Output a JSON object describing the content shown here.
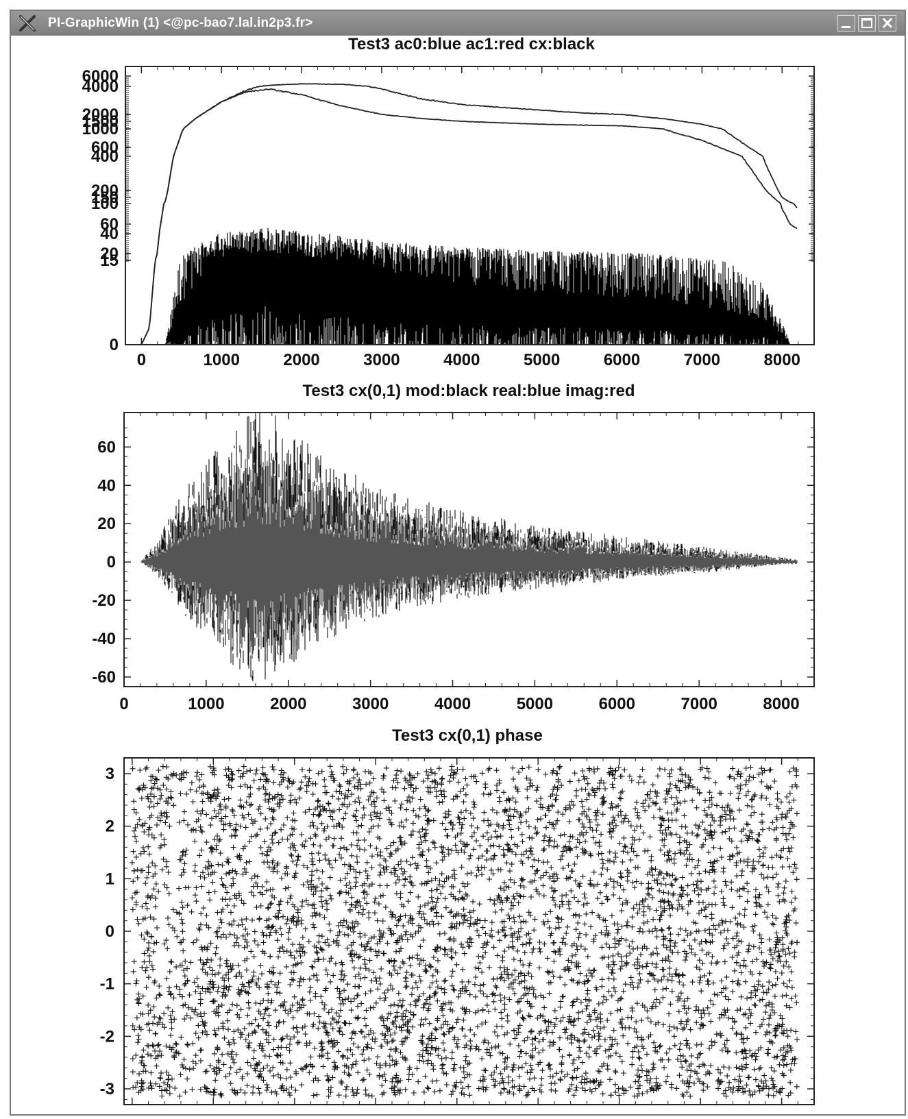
{
  "window": {
    "title": "PI-GraphicWin (1) <@pc-bao7.lal.in2p3.fr>",
    "icons": {
      "app": "x-logo-icon",
      "minimize": "minimize-icon",
      "maximize": "maximize-icon",
      "close": "close-icon"
    }
  },
  "chart_data": [
    {
      "type": "line",
      "title": "Test3 ac0:blue ac1:red cx:black",
      "xlim": [
        -200,
        8400
      ],
      "x_ticks": [
        "0",
        "1000",
        "2000",
        "3000",
        "4000",
        "5000",
        "6000",
        "7000",
        "8000"
      ],
      "y_ticks": [
        "6000",
        "4000",
        "2000",
        "1500",
        "1000",
        "600",
        "400",
        "200",
        "150",
        "100",
        "60",
        "40",
        "20",
        "15",
        "0"
      ],
      "series": [
        {
          "color": "#222222",
          "x": [
            0,
            100,
            200,
            300,
            400,
            500,
            700,
            1000,
            1300,
            1600,
            2000,
            2500,
            3000,
            3500,
            4000,
            4500,
            5000,
            5500,
            6000,
            6500,
            7000,
            7500,
            7800,
            8000,
            8100,
            8192
          ],
          "y": [
            0,
            3,
            20,
            120,
            400,
            900,
            1800,
            2900,
            3700,
            4200,
            4500,
            4400,
            3800,
            3100,
            2700,
            2500,
            2300,
            2100,
            2000,
            1700,
            1300,
            700,
            350,
            150,
            110,
            90
          ]
        },
        {
          "color": "#222222",
          "x": [
            0,
            100,
            200,
            300,
            400,
            500,
            700,
            1000,
            1300,
            1600,
            2000,
            2500,
            3000,
            3500,
            4000,
            4500,
            5000,
            5500,
            6000,
            6500,
            7000,
            7500,
            7800,
            8000,
            8100,
            8192
          ],
          "y": [
            0,
            3,
            20,
            120,
            400,
            900,
            1800,
            2900,
            3600,
            3800,
            3400,
            2600,
            2000,
            1700,
            1500,
            1400,
            1300,
            1250,
            1200,
            1000,
            750,
            400,
            200,
            90,
            60,
            50
          ]
        },
        {
          "color": "#000000",
          "fill": true,
          "x": [
            300,
            500,
            800,
            1000,
            1300,
            1600,
            2000,
            2500,
            3000,
            3500,
            4000,
            4500,
            5000,
            5500,
            6000,
            6500,
            7000,
            7500,
            7800,
            8000,
            8100
          ],
          "y": [
            0,
            12,
            22,
            28,
            32,
            35,
            30,
            25,
            22,
            20,
            18,
            17,
            15,
            15,
            14,
            13,
            11,
            9,
            7,
            3,
            0
          ]
        }
      ]
    },
    {
      "type": "line",
      "title": "Test3 cx(0,1) mod:black real:blue imag:red",
      "xlim": [
        0,
        8400
      ],
      "ylim": [
        -65,
        78
      ],
      "x_ticks": [
        "0",
        "1000",
        "2000",
        "3000",
        "4000",
        "5000",
        "6000",
        "7000",
        "8000"
      ],
      "y_ticks": [
        "60",
        "40",
        "20",
        "0",
        "-20",
        "-40",
        "-60"
      ],
      "series": [
        {
          "color": "#111111",
          "x": [
            200,
            400,
            600,
            800,
            1000,
            1200,
            1400,
            1600,
            1800,
            2000,
            2200,
            2500,
            3000,
            3500,
            4000,
            4500,
            5000,
            5500,
            6000,
            6500,
            7000,
            7500,
            8000,
            8192
          ],
          "y": [
            0,
            8,
            20,
            30,
            38,
            45,
            52,
            58,
            56,
            50,
            45,
            38,
            30,
            24,
            20,
            17,
            14,
            12,
            10,
            8,
            6,
            4,
            2,
            1
          ]
        },
        {
          "color": "#555555",
          "x": [
            200,
            400,
            600,
            800,
            1000,
            1200,
            1400,
            1600,
            1800,
            2000,
            2200,
            2500,
            3000,
            3500,
            4000,
            4500,
            5000,
            5500,
            6000,
            6500,
            7000,
            7500,
            8000,
            8192
          ],
          "y": [
            0,
            -6,
            -16,
            -26,
            -34,
            -40,
            -48,
            -55,
            -52,
            -46,
            -40,
            -34,
            -26,
            -20,
            -17,
            -14,
            -12,
            -10,
            -8,
            -6,
            -5,
            -3,
            -1,
            -1
          ]
        }
      ]
    },
    {
      "type": "scatter",
      "title": "Test3 cx(0,1) phase",
      "xlim": [
        -100,
        8400
      ],
      "ylim": [
        -3.3,
        3.3
      ],
      "x_ticks": [
        "0",
        "1000",
        "2000",
        "3000",
        "4000",
        "5000",
        "6000",
        "7000",
        "8000"
      ],
      "y_ticks": [
        "3",
        "2",
        "1",
        "0",
        "-1",
        "-2",
        "-3"
      ],
      "marker": "+",
      "range": {
        "x": [
          0,
          8192
        ],
        "y": [
          -3.14,
          3.14
        ]
      }
    }
  ]
}
